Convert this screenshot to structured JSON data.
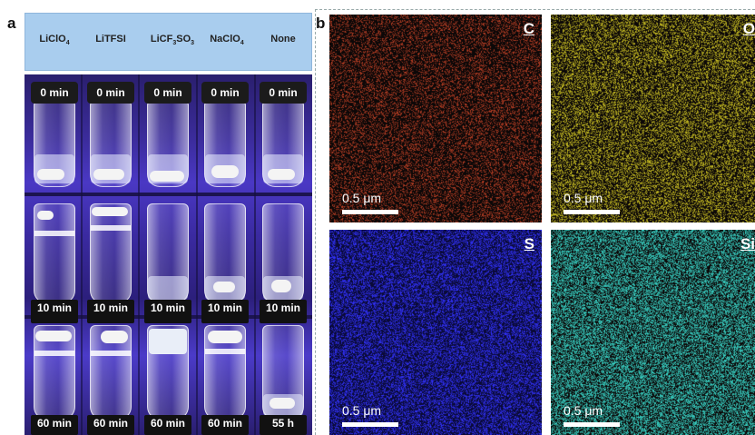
{
  "panel_a": {
    "letter": "a",
    "headers": [
      {
        "main": "LiClO",
        "sub": "4",
        "tail": ""
      },
      {
        "main": "LiTFSI",
        "sub": "",
        "tail": ""
      },
      {
        "main": "LiCF",
        "sub": "3",
        "tail": "SO3"
      },
      {
        "main": "NaClO",
        "sub": "4",
        "tail": ""
      },
      {
        "main": "None",
        "sub": "",
        "tail": ""
      }
    ],
    "row1_times": [
      "0 min",
      "0 min",
      "0 min",
      "0 min",
      "0 min"
    ],
    "row2_times": [
      "10 min",
      "10 min",
      "10 min",
      "10 min",
      "10 min"
    ],
    "row3_times": [
      "60 min",
      "60 min",
      "60 min",
      "60 min",
      "55 h"
    ]
  },
  "panel_b": {
    "letter": "b",
    "maps": [
      {
        "element": "C",
        "scale": "0.5 μm",
        "color": "#b83a1e"
      },
      {
        "element": "O",
        "scale": "0.5 μm",
        "color": "#c9c21c"
      },
      {
        "element": "S",
        "scale": "0.5 μm",
        "color": "#2a2ad0"
      },
      {
        "element": "Si",
        "scale": "0.5 μm",
        "color": "#2fd6c8"
      }
    ]
  }
}
